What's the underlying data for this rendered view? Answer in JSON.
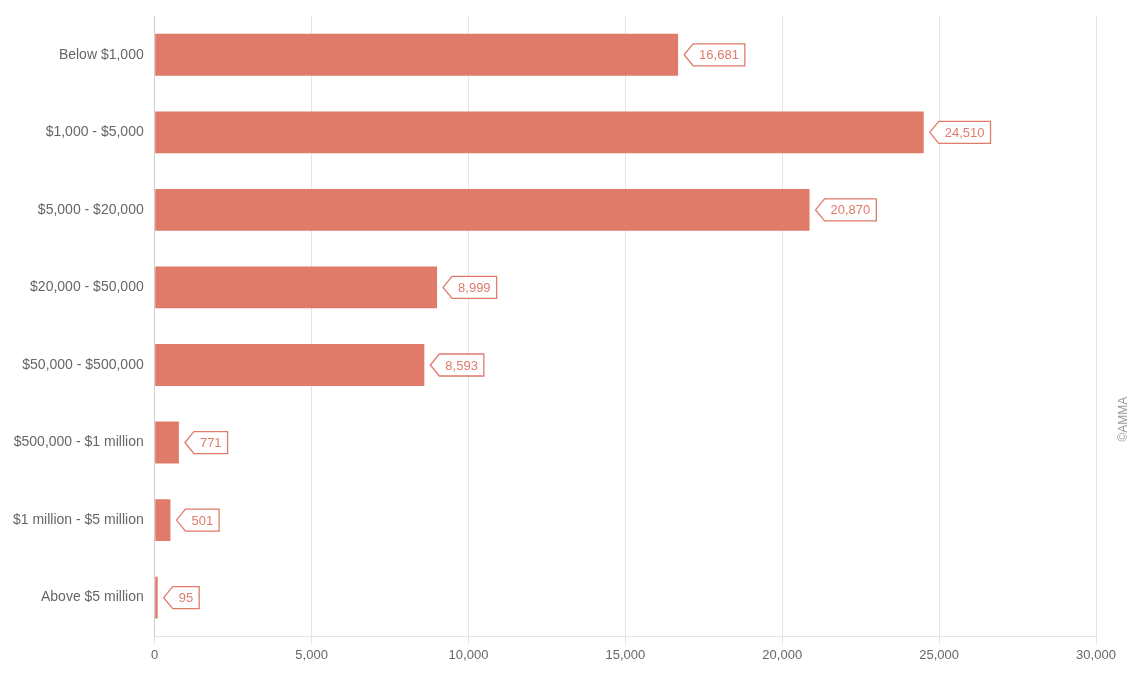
{
  "chart_data": {
    "type": "bar",
    "orientation": "horizontal",
    "categories": [
      "Below $1,000",
      "$1,000 - $5,000",
      "$5,000 - $20,000",
      "$20,000 - $50,000",
      "$50,000 - $500,000",
      "$500,000 - $1 million",
      "$1 million - $5 million",
      "Above $5 million"
    ],
    "values": [
      16681,
      24510,
      20870,
      8999,
      8593,
      771,
      501,
      95
    ],
    "value_labels": [
      "16,681",
      "24,510",
      "20,870",
      "8,999",
      "8,593",
      "771",
      "501",
      "95"
    ],
    "data_labels": true,
    "color": "#E07B6A",
    "xlim": [
      0,
      30000
    ],
    "xticks": [
      0,
      {
        "value": 5000,
        "label": "5,000"
      },
      {
        "value": 10000,
        "label": "10,000"
      },
      {
        "value": 15000,
        "label": "15,000"
      },
      {
        "value": 20000,
        "label": "20,000"
      },
      {
        "value": 25000,
        "label": "25,000"
      },
      {
        "value": 30000,
        "label": "30,000"
      }
    ],
    "grid": true,
    "annotations": [
      "©AMMA"
    ]
  }
}
